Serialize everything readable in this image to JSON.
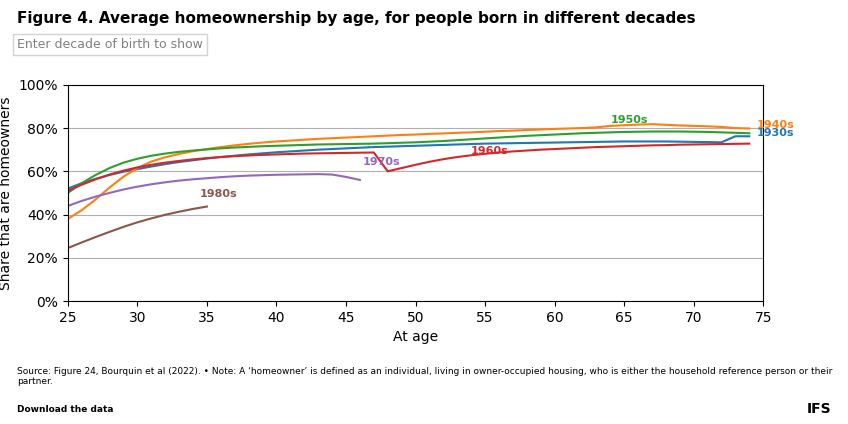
{
  "chart_data": {
    "type": "line",
    "title": "Figure 4. Average homeownership by age, for people born in different decades",
    "subtitle": "Enter decade of birth to show",
    "ylabel": "Share that are homeowners",
    "xlabel": "At age",
    "notes": [
      "Source: Figure 24, Bourquin et al (2022). • Note: A ‘homeowner’ is defined as an individual, living in owner-occupied housing, who is either the household reference person or their\npartner.",
      "Download the data"
    ],
    "logo": "IFS",
    "x": [
      25,
      26,
      27,
      28,
      29,
      30,
      31,
      32,
      33,
      34,
      35,
      36,
      37,
      38,
      39,
      40,
      41,
      42,
      43,
      44,
      45,
      46,
      47,
      48,
      49,
      50,
      51,
      52,
      53,
      54,
      55,
      56,
      57,
      58,
      59,
      60,
      61,
      62,
      63,
      64,
      65,
      66,
      67,
      68,
      69,
      70,
      71,
      72,
      73,
      74
    ],
    "xlim": [
      25,
      75
    ],
    "xticks": [
      25,
      30,
      35,
      40,
      45,
      50,
      55,
      60,
      65,
      70,
      75
    ],
    "ylim": [
      0,
      100
    ],
    "yticks": [
      {
        "value": 0,
        "label": "0%"
      },
      {
        "value": 20,
        "label": "20%"
      },
      {
        "value": 40,
        "label": "40%"
      },
      {
        "value": 60,
        "label": "60%"
      },
      {
        "value": 80,
        "label": "80%"
      },
      {
        "value": 100,
        "label": "100%"
      }
    ],
    "grid": true,
    "series": [
      {
        "name": "1930s",
        "values": [
          52,
          54.5,
          56.5,
          58.3,
          59.8,
          61,
          62.2,
          63.3,
          64.3,
          65.1,
          65.9,
          66.6,
          67.2,
          67.8,
          68.3,
          68.8,
          69.2,
          69.6,
          70,
          70.3,
          70.6,
          70.9,
          71.2,
          71.4,
          71.6,
          71.8,
          72,
          72.2,
          72.4,
          72.6,
          72.8,
          72.9,
          73,
          73.1,
          73.2,
          73.3,
          73.4,
          73.5,
          73.6,
          73.7,
          73.8,
          73.8,
          73.8,
          73.8,
          73.7,
          73.6,
          73.5,
          73.4,
          76.2,
          76.2
        ]
      },
      {
        "name": "1940s",
        "values": [
          38,
          42,
          47,
          52.5,
          57.5,
          61.5,
          64.5,
          66.5,
          68,
          69.3,
          70.3,
          71.2,
          72,
          72.7,
          73.3,
          73.8,
          74.2,
          74.6,
          75,
          75.3,
          75.6,
          75.9,
          76.2,
          76.5,
          76.8,
          77,
          77.3,
          77.5,
          77.8,
          78,
          78.3,
          78.6,
          78.8,
          79.1,
          79.3,
          79.6,
          79.8,
          80,
          80.3,
          81,
          81.3,
          81.6,
          81.8,
          81.5,
          81.2,
          81,
          80.8,
          80.5,
          80,
          79.8
        ]
      },
      {
        "name": "1950s",
        "values": [
          50,
          54.5,
          58.3,
          61.5,
          64,
          65.8,
          67.2,
          68.2,
          69,
          69.6,
          70.1,
          70.6,
          71,
          71.3,
          71.6,
          71.8,
          72,
          72.2,
          72.4,
          72.5,
          72.6,
          72.7,
          72.8,
          73,
          73.2,
          73.4,
          73.7,
          74,
          74.4,
          74.8,
          75.2,
          75.6,
          76,
          76.4,
          76.7,
          77,
          77.3,
          77.6,
          77.8,
          78,
          78.2,
          78.3,
          78.4,
          78.4,
          78.4,
          78.3,
          78.2,
          78,
          77.8,
          77.6
        ]
      },
      {
        "name": "1960s",
        "values": [
          51,
          53.8,
          56.3,
          58.5,
          60.3,
          61.8,
          63,
          64,
          64.8,
          65.5,
          66.1,
          66.6,
          67,
          67.3,
          67.6,
          67.8,
          68,
          68.2,
          68.3,
          68.4,
          68.5,
          68.6,
          68.7,
          60,
          61.5,
          63,
          64.4,
          65.6,
          66.6,
          67.4,
          68.1,
          68.7,
          69.2,
          69.6,
          70,
          70.3,
          70.6,
          70.9,
          71.2,
          71.4,
          71.6,
          71.8,
          72,
          72.1,
          72.3,
          72.4,
          72.5,
          72.6,
          72.7,
          72.8
        ]
      },
      {
        "name": "1970s",
        "values": [
          44,
          46.3,
          48.3,
          50,
          51.6,
          52.9,
          54,
          54.9,
          55.7,
          56.3,
          56.8,
          57.3,
          57.7,
          58,
          58.2,
          58.4,
          58.5,
          58.6,
          58.7,
          58.5,
          57.4,
          56,
          null,
          null,
          null,
          null,
          null,
          null,
          null,
          null,
          null,
          null,
          null,
          null,
          null,
          null,
          null,
          null,
          null,
          null,
          null,
          null,
          null,
          null,
          null,
          null,
          null,
          null,
          null,
          null
        ]
      },
      {
        "name": "1980s",
        "values": [
          24.5,
          27.1,
          29.6,
          32,
          34.3,
          36.4,
          38.2,
          39.9,
          41.3,
          42.6,
          43.7,
          null,
          null,
          null,
          null,
          null,
          null,
          null,
          null,
          null,
          null,
          null,
          null,
          null,
          null,
          null,
          null,
          null,
          null,
          null,
          null,
          null,
          null,
          null,
          null,
          null,
          null,
          null,
          null,
          null,
          null,
          null,
          null,
          null,
          null,
          null,
          null,
          null,
          null,
          null
        ]
      }
    ],
    "annotations": [
      {
        "text": "1930s",
        "x": 74.5,
        "y": 77.5
      },
      {
        "text": "1940s",
        "x": 74.5,
        "y": 81.5
      },
      {
        "text": "1950s",
        "x": 64,
        "y": 83.8
      },
      {
        "text": "1960s",
        "x": 54,
        "y": 69.5
      },
      {
        "text": "1970s",
        "x": 46.2,
        "y": 64.5
      },
      {
        "text": "1980s",
        "x": 34.5,
        "y": 49.5
      }
    ]
  }
}
